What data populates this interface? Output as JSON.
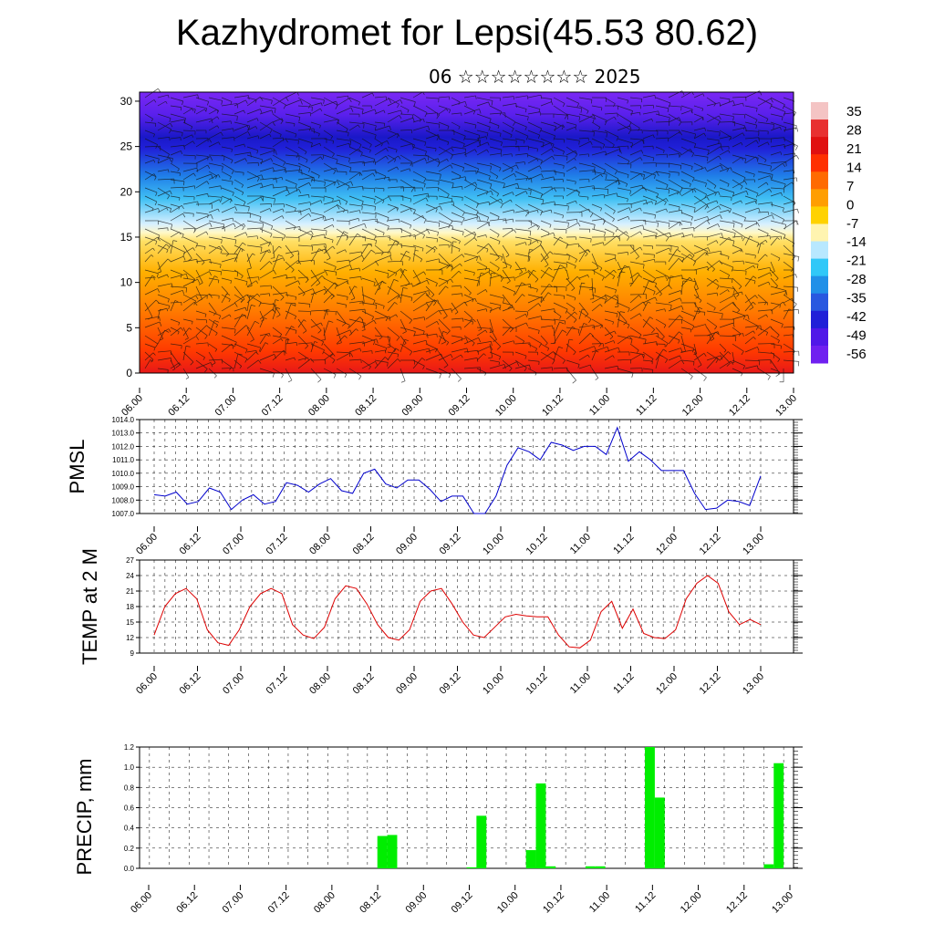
{
  "title": "Kazhydromet for Lepsi(45.53 80.62)",
  "subtitle": "06 ☆☆☆☆☆☆☆☆ 2025",
  "chart_data": [
    {
      "type": "heatmap",
      "description_of_content": "temperature by height with wind barbs",
      "yticks": [
        0,
        5,
        10,
        15,
        20,
        25,
        30
      ],
      "ylim": [
        0,
        31
      ],
      "xticks": [
        "06.00",
        "06.12",
        "07.00",
        "07.12",
        "08.00",
        "08.12",
        "09.00",
        "09.12",
        "10.00",
        "10.12",
        "11.00",
        "11.12",
        "12.00",
        "12.12",
        "13.00"
      ],
      "colorbar_labels": [
        "35",
        "28",
        "21",
        "14",
        "7",
        "0",
        "-7",
        "-14",
        "-21",
        "-28",
        "-35",
        "-42",
        "-49",
        "-56"
      ],
      "colorbar_colors": [
        "#f4c4c4",
        "#e83030",
        "#e01010",
        "#ff3000",
        "#ff6a00",
        "#ff9e00",
        "#ffd200",
        "#fff4b0",
        "#b8e8ff",
        "#30c8f8",
        "#2090e8",
        "#2858e0",
        "#2020d8",
        "#5018e8",
        "#7020f0"
      ]
    },
    {
      "type": "line",
      "ylabel": "PMSL",
      "yticks": [
        "1007.0",
        "1008.0",
        "1009.0",
        "1010.0",
        "1011.0",
        "1012.0",
        "1013.0",
        "1014.0"
      ],
      "ylim": [
        1007,
        1014
      ],
      "xticks": [
        "06.00",
        "06.12",
        "07.00",
        "07.12",
        "08.00",
        "08.12",
        "09.00",
        "09.12",
        "10.00",
        "10.12",
        "11.00",
        "11.12",
        "12.00",
        "12.12",
        "13.00"
      ],
      "color": "#0000cc",
      "values": [
        1008.4,
        1008.3,
        1008.6,
        1007.7,
        1007.9,
        1008.9,
        1008.6,
        1007.3,
        1008.0,
        1008.4,
        1007.7,
        1007.9,
        1009.3,
        1009.1,
        1008.6,
        1009.2,
        1009.6,
        1008.7,
        1008.5,
        1010.0,
        1010.3,
        1009.2,
        1008.9,
        1009.5,
        1009.5,
        1008.8,
        1007.9,
        1008.3,
        1008.3,
        1007.0,
        1007.0,
        1008.3,
        1010.6,
        1011.9,
        1011.6,
        1011.0,
        1012.3,
        1012.1,
        1011.7,
        1012.0,
        1012.0,
        1011.4,
        1013.4,
        1010.9,
        1011.6,
        1011.0,
        1010.2,
        1010.2,
        1010.2,
        1008.5,
        1007.3,
        1007.4,
        1008.0,
        1007.9,
        1007.6,
        1009.8
      ]
    },
    {
      "type": "line",
      "ylabel": "TEMP at 2 M",
      "yticks": [
        "9",
        "12",
        "15",
        "18",
        "21",
        "24",
        "27"
      ],
      "ylim": [
        9,
        27
      ],
      "xticks": [
        "06.00",
        "06.12",
        "07.00",
        "07.12",
        "08.00",
        "08.12",
        "09.00",
        "09.12",
        "10.00",
        "10.12",
        "11.00",
        "11.12",
        "12.00",
        "12.12",
        "13.00"
      ],
      "color": "#dd0000",
      "values": [
        12.5,
        18.0,
        20.5,
        21.5,
        19.5,
        13.5,
        11.0,
        10.5,
        13.5,
        18.0,
        20.5,
        21.5,
        20.5,
        14.5,
        12.5,
        11.8,
        14.0,
        19.5,
        22.0,
        21.5,
        18.5,
        14.5,
        12.0,
        11.5,
        13.5,
        19.0,
        21.0,
        21.5,
        18.5,
        15.0,
        12.5,
        12.0,
        14.0,
        16.0,
        16.5,
        16.2,
        16.0,
        16.0,
        12.5,
        10.2,
        10.0,
        11.5,
        17.0,
        19.0,
        13.8,
        17.5,
        12.8,
        12.0,
        11.8,
        13.5,
        19.5,
        22.5,
        24.0,
        22.5,
        17.0,
        14.5,
        15.5,
        14.5
      ]
    },
    {
      "type": "bar",
      "ylabel": "PRECIP, mm",
      "yticks": [
        "0.0",
        "0.2",
        "0.4",
        "0.6",
        "0.8",
        "1.0",
        "1.2"
      ],
      "ylim": [
        0,
        1.2
      ],
      "xticks": [
        "06.00",
        "06.12",
        "07.00",
        "07.12",
        "08.00",
        "08.12",
        "09.00",
        "09.12",
        "10.00",
        "10.12",
        "11.00",
        "11.12",
        "12.00",
        "12.12",
        "13.00"
      ],
      "color": "#00ee00",
      "bars": [
        {
          "slot": 24,
          "value": 0.32
        },
        {
          "slot": 25,
          "value": 0.33
        },
        {
          "slot": 33,
          "value": 0.01
        },
        {
          "slot": 34,
          "value": 0.52
        },
        {
          "slot": 39,
          "value": 0.18
        },
        {
          "slot": 40,
          "value": 0.84
        },
        {
          "slot": 41,
          "value": 0.02
        },
        {
          "slot": 45,
          "value": 0.02
        },
        {
          "slot": 46,
          "value": 0.02
        },
        {
          "slot": 51,
          "value": 1.2
        },
        {
          "slot": 52,
          "value": 0.7
        },
        {
          "slot": 63,
          "value": 0.04
        },
        {
          "slot": 64,
          "value": 1.04
        }
      ]
    }
  ]
}
